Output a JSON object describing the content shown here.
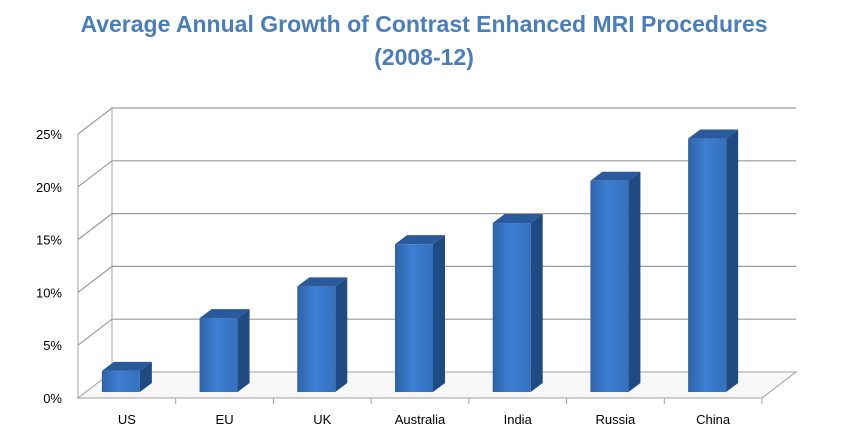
{
  "chart_data": {
    "type": "bar",
    "title_line1": "Average Annual Growth of Contrast Enhanced MRI Procedures",
    "title_line2": "(2008-12)",
    "categories": [
      "US",
      "EU",
      "UK",
      "Australia",
      "India",
      "Russia",
      "China"
    ],
    "values": [
      2,
      7,
      10,
      14,
      16,
      20,
      24
    ],
    "ylim": [
      0,
      25
    ],
    "yticks": [
      "0%",
      "5%",
      "10%",
      "15%",
      "20%",
      "25%"
    ],
    "ytick_values": [
      0,
      5,
      10,
      15,
      20,
      25
    ],
    "grid": true,
    "bar_color": "#3a78c9"
  }
}
